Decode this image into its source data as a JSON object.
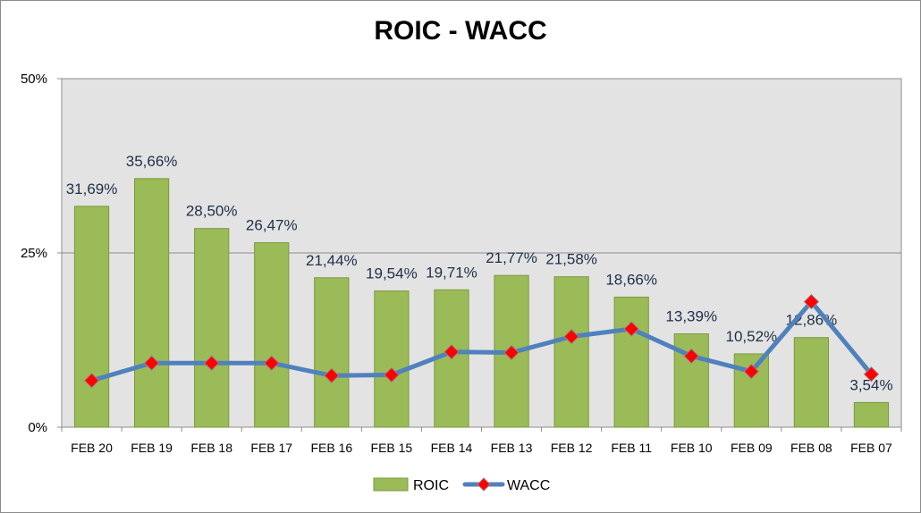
{
  "chart_data": {
    "type": "bar",
    "title": "ROIC - WACC",
    "xlabel": "",
    "ylabel": "",
    "ylim": [
      0,
      50
    ],
    "yticks": [
      "0%",
      "25%",
      "50%"
    ],
    "grid": "horizontal",
    "legend_position": "bottom",
    "categories": [
      "FEB 20",
      "FEB 19",
      "FEB 18",
      "FEB 17",
      "FEB 16",
      "FEB 15",
      "FEB 14",
      "FEB 13",
      "FEB 12",
      "FEB 11",
      "FEB 10",
      "FEB 09",
      "FEB 08",
      "FEB 07"
    ],
    "series": [
      {
        "name": "ROIC",
        "type": "bar",
        "color": "#9bbb59",
        "values": [
          31.69,
          35.66,
          28.5,
          26.47,
          21.44,
          19.54,
          19.71,
          21.77,
          21.58,
          18.66,
          13.39,
          10.52,
          12.86,
          3.54
        ],
        "labels": [
          "31,69%",
          "35,66%",
          "28,50%",
          "26,47%",
          "21,44%",
          "19,54%",
          "19,71%",
          "21,77%",
          "21,58%",
          "18,66%",
          "13,39%",
          "10,52%",
          "12,86%",
          "3,54%"
        ]
      },
      {
        "name": "WACC",
        "type": "line",
        "color": "#4f81bd",
        "marker_color": "#ff0000",
        "values": [
          6.7,
          9.2,
          9.2,
          9.2,
          7.4,
          7.5,
          10.8,
          10.7,
          13.0,
          14.1,
          10.2,
          8.0,
          18.0,
          7.6
        ]
      }
    ]
  }
}
